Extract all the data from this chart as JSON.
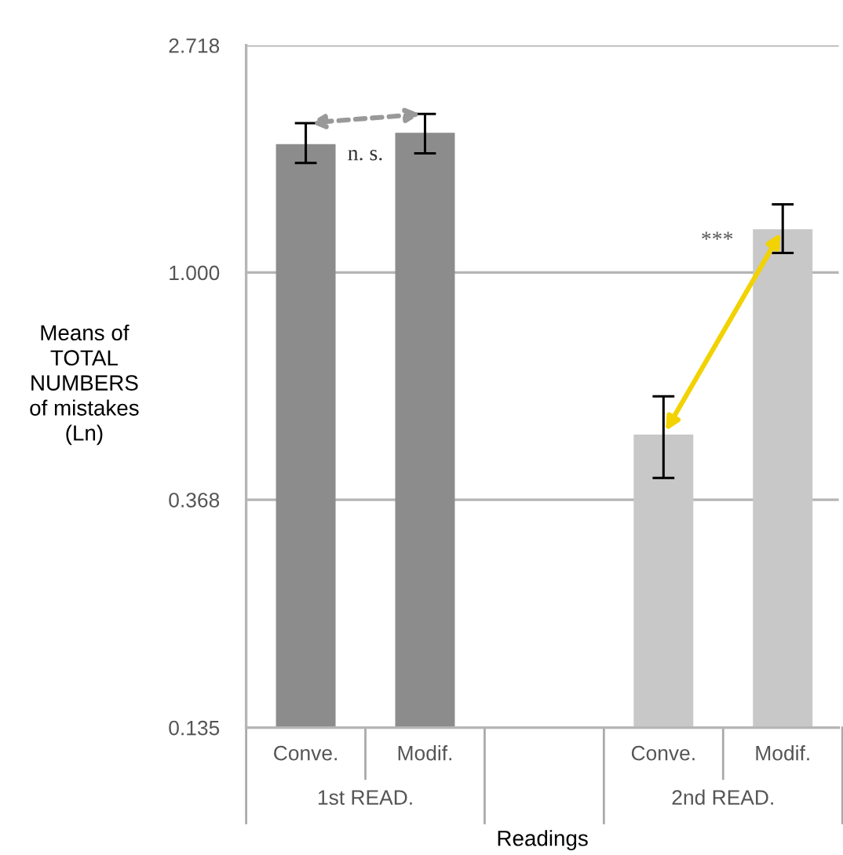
{
  "chart_data": {
    "type": "bar",
    "ylabel": "Means of\nTOTAL\nNUMBERS\nof mistakes\n(Ln)",
    "xlabel": "Readings",
    "categories": [
      "Conve.",
      "Modif.",
      null,
      "Conve.",
      "Modif."
    ],
    "values": [
      1.76,
      1.85,
      null,
      0.49,
      1.21
    ],
    "colors": [
      "#8c8c8c",
      "#8c8c8c",
      null,
      "#c8c8c8",
      "#c8c8c8"
    ],
    "errors": [
      [
        1.62,
        1.93
      ],
      [
        1.69,
        2.01
      ],
      null,
      [
        0.405,
        0.58
      ],
      [
        1.09,
        1.35
      ]
    ],
    "log": true,
    "ylim": [
      0.135,
      2.718
    ],
    "yticks": [
      {
        "value": 0.135,
        "label": "0.135"
      },
      {
        "value": 0.368,
        "label": "0.368"
      },
      {
        "value": 1.0,
        "label": "1.000"
      },
      {
        "value": 2.718,
        "label": "2.718"
      }
    ],
    "grid": "y",
    "annotations": [
      "n. s.",
      "***",
      "1st READ.",
      "2nd READ."
    ]
  }
}
